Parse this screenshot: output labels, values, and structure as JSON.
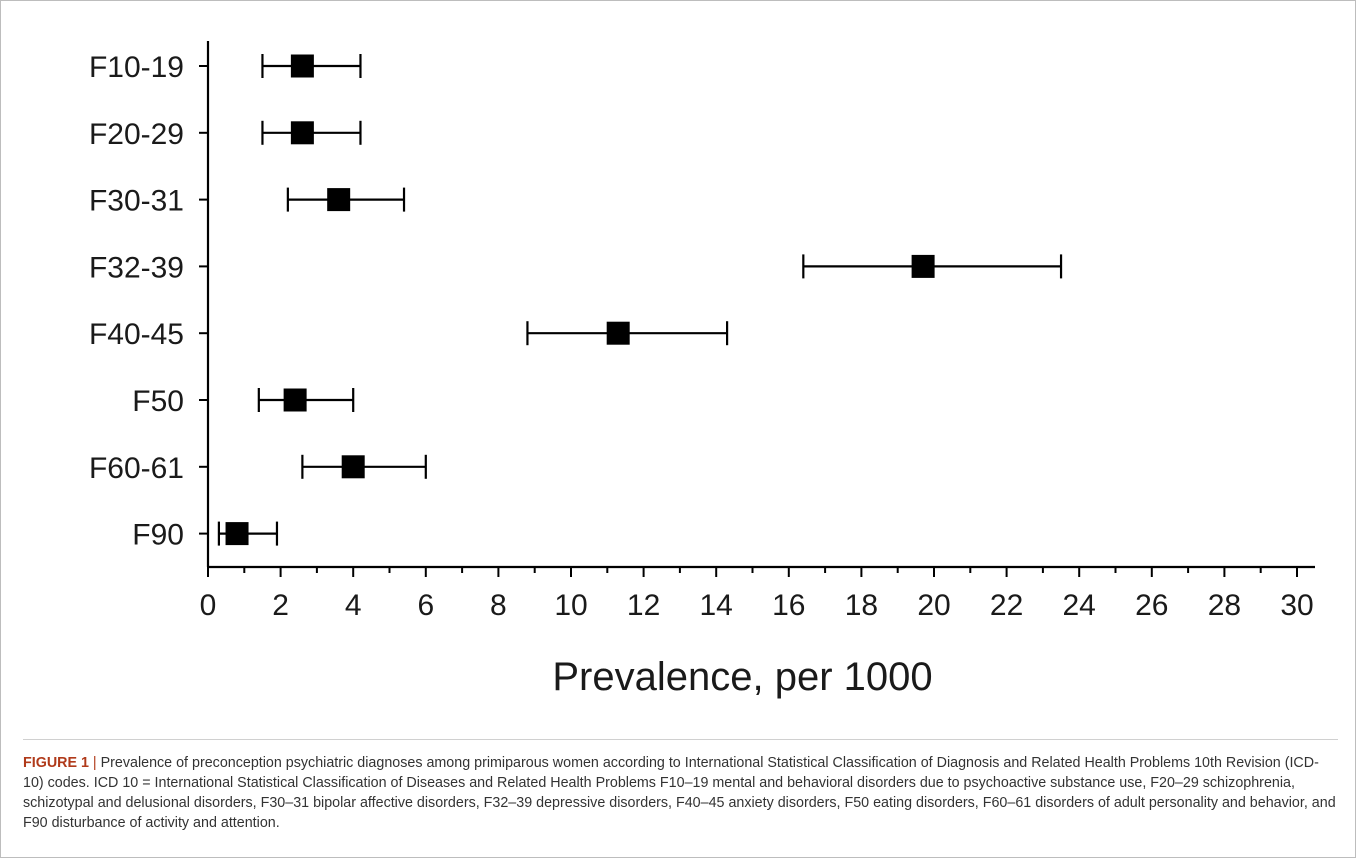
{
  "chart_data": {
    "type": "forest",
    "xlabel": "Prevalence, per 1000",
    "xlim": [
      0,
      30
    ],
    "xticks": [
      0,
      2,
      4,
      6,
      8,
      10,
      12,
      14,
      16,
      18,
      20,
      22,
      24,
      26,
      28,
      30
    ],
    "categories": [
      "F10-19",
      "F20-29",
      "F30-31",
      "F32-39",
      "F40-45",
      "F50",
      "F60-61",
      "F90"
    ],
    "points": [
      {
        "label": "F10-19",
        "estimate": 2.6,
        "lower": 1.5,
        "upper": 4.2
      },
      {
        "label": "F20-29",
        "estimate": 2.6,
        "lower": 1.5,
        "upper": 4.2
      },
      {
        "label": "F30-31",
        "estimate": 3.6,
        "lower": 2.2,
        "upper": 5.4
      },
      {
        "label": "F32-39",
        "estimate": 19.7,
        "lower": 16.4,
        "upper": 23.5
      },
      {
        "label": "F40-45",
        "estimate": 11.3,
        "lower": 8.8,
        "upper": 14.3
      },
      {
        "label": "F50",
        "estimate": 2.4,
        "lower": 1.4,
        "upper": 4.0
      },
      {
        "label": "F60-61",
        "estimate": 4.0,
        "lower": 2.6,
        "upper": 6.0
      },
      {
        "label": "F90",
        "estimate": 0.8,
        "lower": 0.3,
        "upper": 1.9
      }
    ]
  },
  "caption": {
    "lead": "FIGURE 1",
    "separator": " | ",
    "text": "Prevalence of preconception psychiatric diagnoses among primiparous women according to International Statistical Classification of Diagnosis and Related Health Problems 10th Revision (ICD-10) codes. ICD 10 = International Statistical Classification of Diseases and Related Health Problems F10–19 mental and behavioral disorders due to psychoactive substance use, F20–29 schizophrenia, schizotypal and delusional disorders, F30–31 bipolar affective disorders, F32–39 depressive disorders, F40–45 anxiety disorders, F50 eating disorders, F60–61 disorders of adult personality and behavior, and F90 disturbance of activity and attention."
  },
  "colors": {
    "marker": "#000000",
    "axis": "#000000",
    "caption_lead": "#b03a1a"
  }
}
